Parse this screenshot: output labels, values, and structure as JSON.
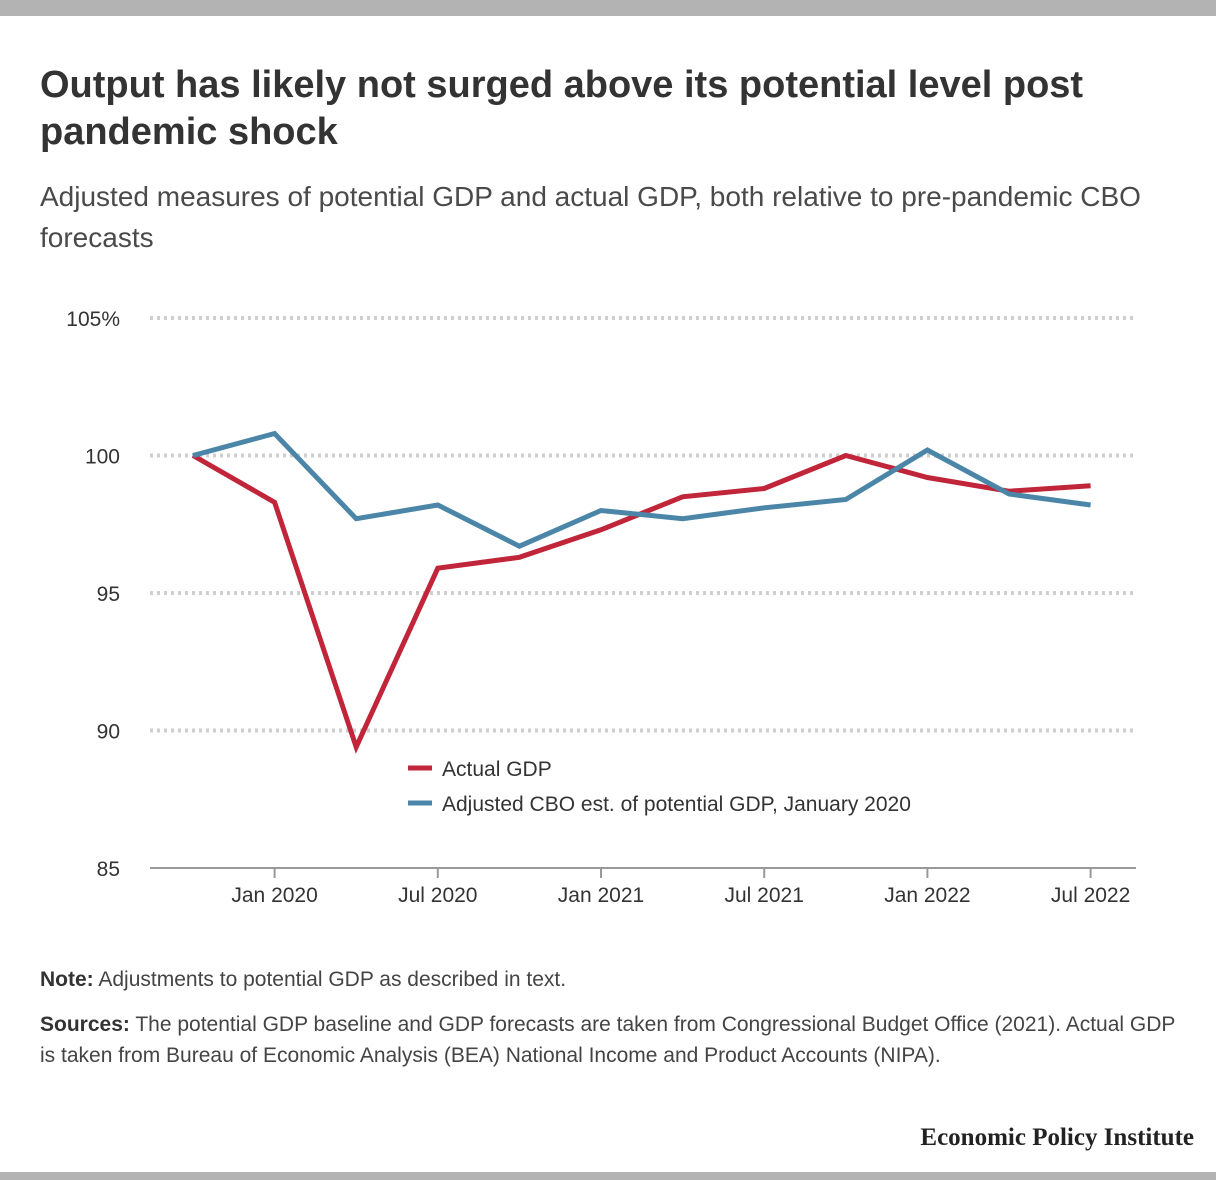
{
  "title": "Output has likely not surged above its potential level post pandemic shock",
  "subtitle": "Adjusted measures of potential GDP and actual GDP, both relative to pre-pandemic CBO forecasts",
  "note": {
    "label": "Note:",
    "text": "Adjustments to potential GDP as described in text."
  },
  "sources": {
    "label": "Sources:",
    "text": "The potential GDP baseline and GDP forecasts are taken from Congressional Budget Office (2021). Actual GDP is taken from Bureau of Economic Analysis (BEA) National Income and Product Accounts (NIPA)."
  },
  "brand": "Economic Policy Institute",
  "colors": {
    "actual_gdp": "#c0253a",
    "potential_gdp": "#4b86a8",
    "gridline": "#cfcfcf",
    "frame_bar": "#b3b3b3"
  },
  "chart_data": {
    "type": "line",
    "title": "",
    "xlabel": "",
    "ylabel": "",
    "x": [
      "2019-10",
      "2020-01",
      "2020-04",
      "2020-07",
      "2020-10",
      "2021-01",
      "2021-04",
      "2021-07",
      "2021-10",
      "2022-01",
      "2022-04",
      "2022-07"
    ],
    "x_ticks": [
      {
        "x": "2020-01",
        "label": "Jan 2020"
      },
      {
        "x": "2020-07",
        "label": "Jul 2020"
      },
      {
        "x": "2021-01",
        "label": "Jan 2021"
      },
      {
        "x": "2021-07",
        "label": "Jul 2021"
      },
      {
        "x": "2022-01",
        "label": "Jan 2022"
      },
      {
        "x": "2022-07",
        "label": "Jul 2022"
      }
    ],
    "ylim": [
      85,
      105
    ],
    "y_ticks": [
      {
        "value": 105,
        "label": "105%"
      },
      {
        "value": 100,
        "label": "100"
      },
      {
        "value": 95,
        "label": "95"
      },
      {
        "value": 90,
        "label": "90"
      },
      {
        "value": 85,
        "label": "85"
      }
    ],
    "grid": true,
    "legend_position": "bottom-center",
    "series": [
      {
        "name": "Actual GDP",
        "color": "#c0253a",
        "values": [
          100.0,
          98.3,
          89.4,
          95.9,
          96.3,
          97.3,
          98.5,
          98.8,
          100.0,
          99.2,
          98.7,
          98.9
        ]
      },
      {
        "name": "Adjusted CBO est. of potential GDP, January 2020",
        "color": "#4b86a8",
        "values": [
          100.0,
          100.8,
          97.7,
          98.2,
          96.7,
          98.0,
          97.7,
          98.1,
          98.4,
          100.2,
          98.6,
          98.2
        ]
      }
    ]
  }
}
